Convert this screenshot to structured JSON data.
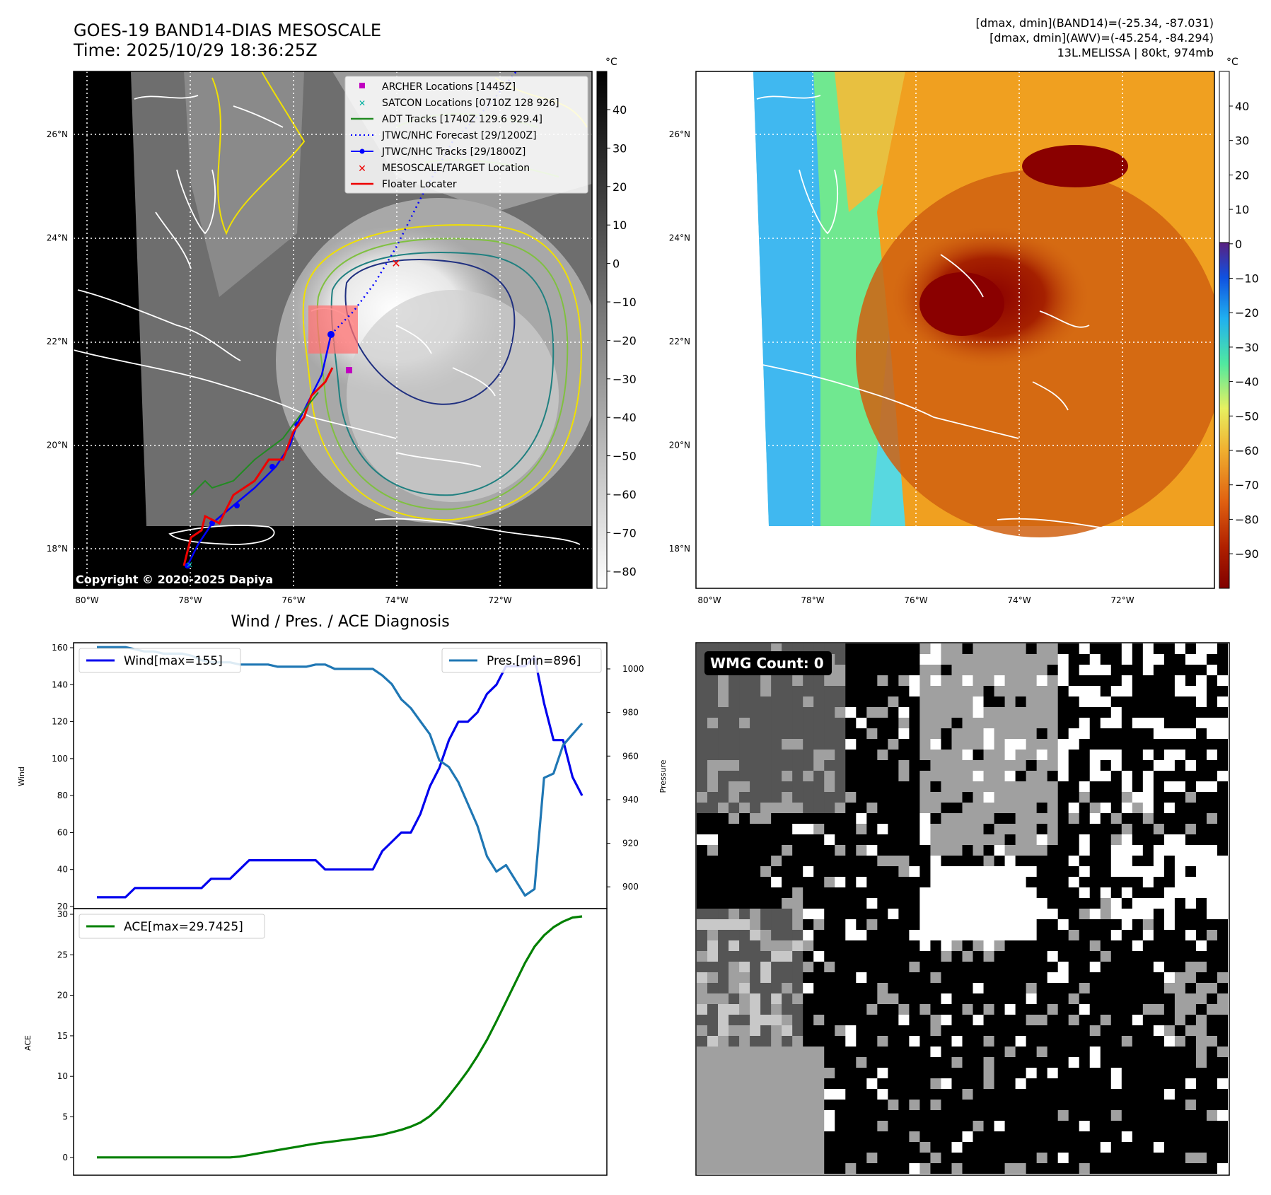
{
  "colors": {
    "wind": "#0000ee",
    "pressure": "#1f77b4",
    "ace": "#008000",
    "archer": "#c000c0",
    "satcon": "#00b0a0",
    "adt": "#228b22",
    "forecast": "#0000ff",
    "tracks": "#0000ff",
    "target": "#ee0000",
    "floater": "#ee0000"
  },
  "map_left": {
    "title_line1": "GOES-19 BAND14-DIAS MESOSCALE",
    "title_line2": "Time: 2025/10/29 18:36:25Z",
    "copyright": "Copyright © 2020-2025 Dapiya",
    "lon_labels": [
      "80°W",
      "78°W",
      "76°W",
      "74°W",
      "72°W"
    ],
    "lat_labels": [
      "26°N",
      "24°N",
      "22°N",
      "20°N",
      "18°N"
    ],
    "colorbar_unit": "°C",
    "colorbar_ticks": [
      "40",
      "30",
      "20",
      "10",
      "0",
      "−10",
      "−20",
      "−30",
      "−40",
      "−50",
      "−60",
      "−70",
      "−80"
    ],
    "legend": [
      {
        "label": "ARCHER Locations [1445Z]",
        "symbol": "square"
      },
      {
        "label": "SATCON Locations [0710Z 128 926]",
        "symbol": "x-small"
      },
      {
        "label": "ADT Tracks [1740Z 129.6 929.4]",
        "symbol": "line"
      },
      {
        "label": "JTWC/NHC Forecast [29/1200Z]",
        "symbol": "dotted"
      },
      {
        "label": "JTWC/NHC Tracks [29/1800Z]",
        "symbol": "line-dot"
      },
      {
        "label": "MESOSCALE/TARGET Location",
        "symbol": "x"
      },
      {
        "label": "Floater Locater",
        "symbol": "line"
      }
    ]
  },
  "map_right": {
    "header_line1": "[dmax, dmin](BAND14)=(-25.34, -87.031)",
    "header_line2": "[dmax, dmin](AWV)=(-45.254, -84.294)",
    "header_line3": "13L.MELISSA | 80kt, 974mb",
    "lon_labels": [
      "80°W",
      "78°W",
      "76°W",
      "74°W",
      "72°W"
    ],
    "lat_labels": [
      "26°N",
      "24°N",
      "22°N",
      "20°N",
      "18°N"
    ],
    "colorbar_unit": "°C",
    "colorbar_ticks": [
      "40",
      "30",
      "20",
      "10",
      "0",
      "−10",
      "−20",
      "−30",
      "−40",
      "−50",
      "−60",
      "−70",
      "−80",
      "−90"
    ]
  },
  "wmg": {
    "label": "WMG Count: 0"
  },
  "chart_data": [
    {
      "type": "line",
      "title": "Wind / Pres. / ACE Diagnosis",
      "xlabel": "",
      "ylabel": "Wind",
      "ylabel_right": "Pressure",
      "ylim": [
        20,
        160
      ],
      "ylim_right": [
        890,
        1012
      ],
      "yticks": [
        20,
        40,
        60,
        80,
        100,
        120,
        140,
        160
      ],
      "yticks_right": [
        900,
        920,
        940,
        960,
        980,
        1000
      ],
      "series": [
        {
          "name": "Wind[max=155]",
          "axis": "left",
          "values": [
            25,
            25,
            25,
            25,
            30,
            30,
            30,
            30,
            30,
            30,
            30,
            30,
            35,
            35,
            35,
            40,
            45,
            45,
            45,
            45,
            45,
            45,
            45,
            45,
            40,
            40,
            40,
            40,
            40,
            40,
            50,
            55,
            60,
            60,
            70,
            85,
            95,
            110,
            120,
            120,
            125,
            135,
            140,
            150,
            150,
            150,
            155,
            130,
            110,
            110,
            90,
            80
          ]
        },
        {
          "name": "Pres.[min=896]",
          "axis": "right",
          "values": [
            1010,
            1010,
            1010,
            1010,
            1009,
            1008,
            1008,
            1007,
            1007,
            1007,
            1006,
            1004,
            1003,
            1003,
            1003,
            1002,
            1002,
            1002,
            1002,
            1001,
            1001,
            1001,
            1001,
            1002,
            1002,
            1000,
            1000,
            1000,
            1000,
            1000,
            997,
            993,
            986,
            982,
            976,
            970,
            958,
            955,
            948,
            938,
            928,
            914,
            907,
            910,
            903,
            896,
            899,
            950,
            952,
            965,
            970,
            975
          ]
        }
      ]
    },
    {
      "type": "line",
      "xlabel": "",
      "ylabel": "ACE",
      "ylim": [
        -1.5,
        30
      ],
      "yticks": [
        0,
        5,
        10,
        15,
        20,
        25,
        30
      ],
      "series": [
        {
          "name": "ACE[max=29.7425]",
          "values": [
            0,
            0,
            0,
            0,
            0,
            0,
            0,
            0,
            0,
            0,
            0,
            0,
            0,
            0,
            0,
            0.1,
            0.3,
            0.5,
            0.7,
            0.9,
            1.1,
            1.3,
            1.5,
            1.7,
            1.85,
            2.0,
            2.15,
            2.3,
            2.45,
            2.6,
            2.8,
            3.1,
            3.4,
            3.8,
            4.3,
            5.1,
            6.2,
            7.6,
            9.1,
            10.7,
            12.5,
            14.5,
            16.8,
            19.2,
            21.6,
            24.0,
            26.0,
            27.4,
            28.4,
            29.1,
            29.6,
            29.7425
          ]
        }
      ]
    }
  ]
}
